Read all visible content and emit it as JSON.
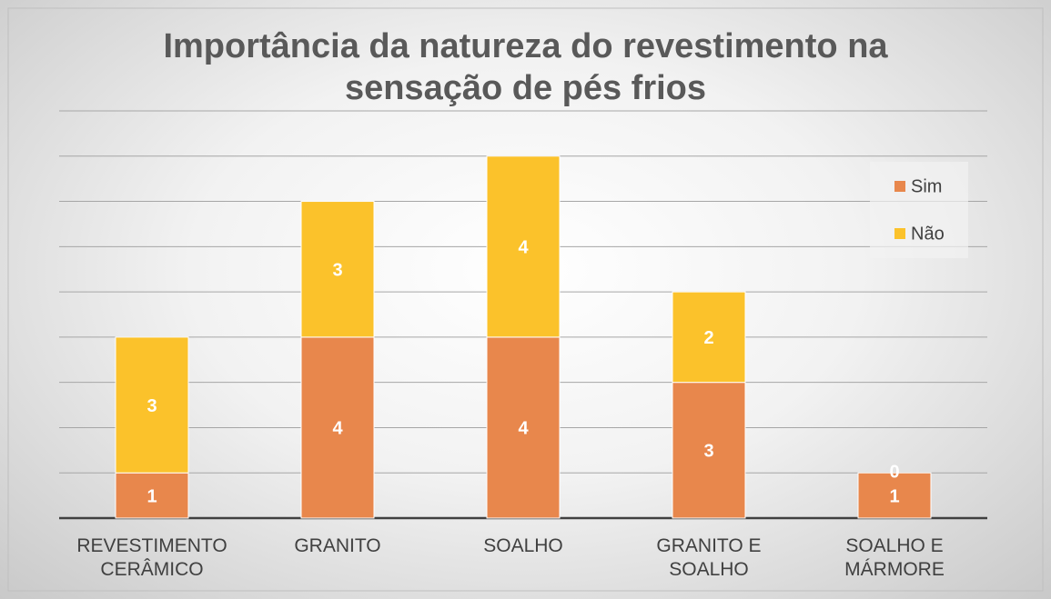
{
  "chart_data": {
    "type": "stacked_bar",
    "title": "Importância da natureza do revestimento na sensação de pés frios",
    "categories": [
      "REVESTIMENTO CERÂMICO",
      "GRANITO",
      "SOALHO",
      "GRANITO E SOALHO",
      "SOALHO E MÁRMORE"
    ],
    "series": [
      {
        "name": "Sim",
        "color": "#e8874c",
        "values": [
          1,
          4,
          4,
          3,
          1
        ]
      },
      {
        "name": "Não",
        "color": "#fbc22b",
        "values": [
          3,
          3,
          4,
          2,
          0
        ]
      }
    ],
    "ylim": [
      0,
      9
    ],
    "yticks": [
      0,
      1,
      2,
      3,
      4,
      5,
      6,
      7,
      8,
      9
    ],
    "grid": true,
    "legend": "right"
  }
}
